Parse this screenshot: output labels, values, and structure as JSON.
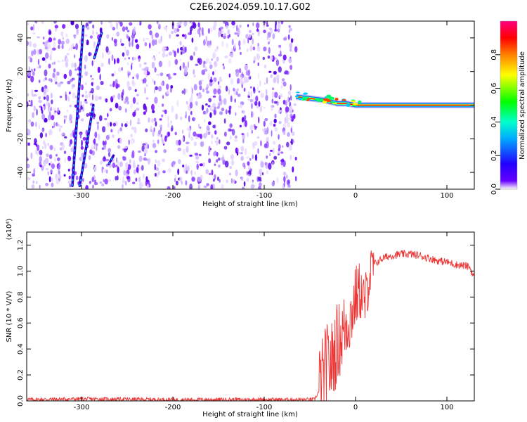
{
  "title": "C2E6.2024.059.10.17.G02",
  "chart_data": [
    {
      "type": "heatmap",
      "xlabel": "Height of straight line (km)",
      "ylabel": "Frequency (Hz)",
      "xlim": [
        -360,
        130
      ],
      "ylim": [
        -50,
        50
      ],
      "xticks": [
        -300,
        -200,
        -100,
        0,
        100
      ],
      "yticks": [
        -40,
        -20,
        0,
        20,
        40
      ],
      "colorbar": {
        "label": "Normalized spectral amplitude",
        "range": [
          0,
          1
        ],
        "ticks": [
          "0.0",
          "0.2",
          "0.4",
          "0.6",
          "0.8"
        ],
        "colors": [
          "#ffffff",
          "#6600ff",
          "#0000ff",
          "#00ffff",
          "#00ff00",
          "#ffff00",
          "#ff8000",
          "#ff0000",
          "#ff0080"
        ]
      },
      "noise_region": [
        -360,
        -65
      ],
      "signal_track": {
        "x": [
          -65,
          -50,
          -35,
          -20,
          -10,
          0,
          20,
          60,
          100,
          130
        ],
        "frequency": [
          5,
          4,
          3,
          1,
          1,
          0,
          0,
          0,
          0,
          0
        ]
      },
      "streaks": [
        {
          "x": [
            -310,
            -298
          ],
          "frequency": [
            -48,
            47
          ]
        },
        {
          "x": [
            -302,
            -287
          ],
          "frequency": [
            -48,
            0
          ]
        },
        {
          "x": [
            -286,
            -278
          ],
          "frequency": [
            28,
            43
          ]
        },
        {
          "x": [
            -270,
            -265
          ],
          "frequency": [
            -35,
            -30
          ]
        }
      ]
    },
    {
      "type": "line",
      "xlabel": "Height of straight line (km)",
      "ylabel": "SNR (10 * V/V)",
      "y_multiplier": "(x10⁴)",
      "xlim": [
        -360,
        130
      ],
      "ylim": [
        0,
        1.3
      ],
      "xticks": [
        -300,
        -200,
        -100,
        0,
        100
      ],
      "yticks": [
        "0.0",
        "0.2",
        "0.4",
        "0.6",
        "0.8",
        "1.0",
        "1.2"
      ],
      "color": "#ee3333",
      "series": [
        {
          "x": [
            -360,
            -300,
            -200,
            -100,
            -45,
            -38,
            -32,
            -26,
            -20,
            -15,
            -10,
            -5,
            0,
            5,
            10,
            15,
            20,
            30,
            40,
            50,
            60,
            70,
            80,
            90,
            100,
            110,
            120,
            125,
            130
          ],
          "y": [
            0.01,
            0.015,
            0.01,
            0.01,
            0.01,
            0.1,
            0.25,
            0.3,
            0.45,
            0.5,
            0.6,
            0.65,
            0.8,
            0.85,
            0.75,
            0.95,
            1.05,
            1.1,
            1.12,
            1.13,
            1.13,
            1.12,
            1.1,
            1.08,
            1.07,
            1.05,
            1.04,
            1.03,
            0.95
          ]
        }
      ]
    }
  ]
}
